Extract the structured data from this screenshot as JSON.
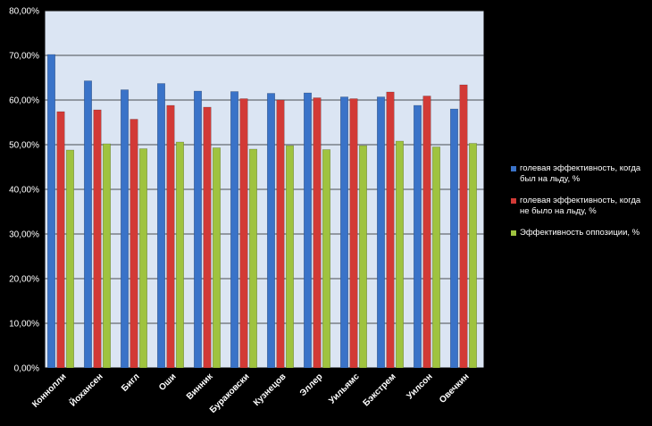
{
  "chart_data": {
    "type": "bar",
    "title": "",
    "xlabel": "",
    "ylabel": "",
    "ylim": [
      0,
      80
    ],
    "yticks": [
      "0,00%",
      "10,00%",
      "20,00%",
      "30,00%",
      "40,00%",
      "50,00%",
      "60,00%",
      "70,00%",
      "80,00%"
    ],
    "categories": [
      "Коннолли",
      "Йохансен",
      "Бигл",
      "Оши",
      "Винник",
      "Бураковски",
      "Кузнецов",
      "Эллер",
      "Уильямс",
      "Бэкстрем",
      "Уилсон",
      "Овечкин"
    ],
    "series": [
      {
        "name": "голевая эффективность, когда был на льду, %",
        "color": "#3a73c8",
        "values": [
          70.2,
          64.3,
          62.3,
          63.7,
          62.0,
          61.9,
          61.5,
          61.6,
          60.7,
          60.7,
          58.8,
          58.0
        ]
      },
      {
        "name": "голевая эффективность, когда не было на льду, %",
        "color": "#d23a36",
        "values": [
          57.4,
          57.8,
          55.7,
          58.8,
          58.4,
          60.3,
          60.0,
          60.5,
          60.3,
          61.8,
          60.9,
          63.4
        ]
      },
      {
        "name": "Эффективность оппозиции, %",
        "color": "#9fc33f",
        "values": [
          48.8,
          50.2,
          49.1,
          50.6,
          49.3,
          49.0,
          49.8,
          48.9,
          49.8,
          50.8,
          49.5,
          50.3
        ]
      }
    ],
    "legend_position": "right",
    "grid": true
  }
}
